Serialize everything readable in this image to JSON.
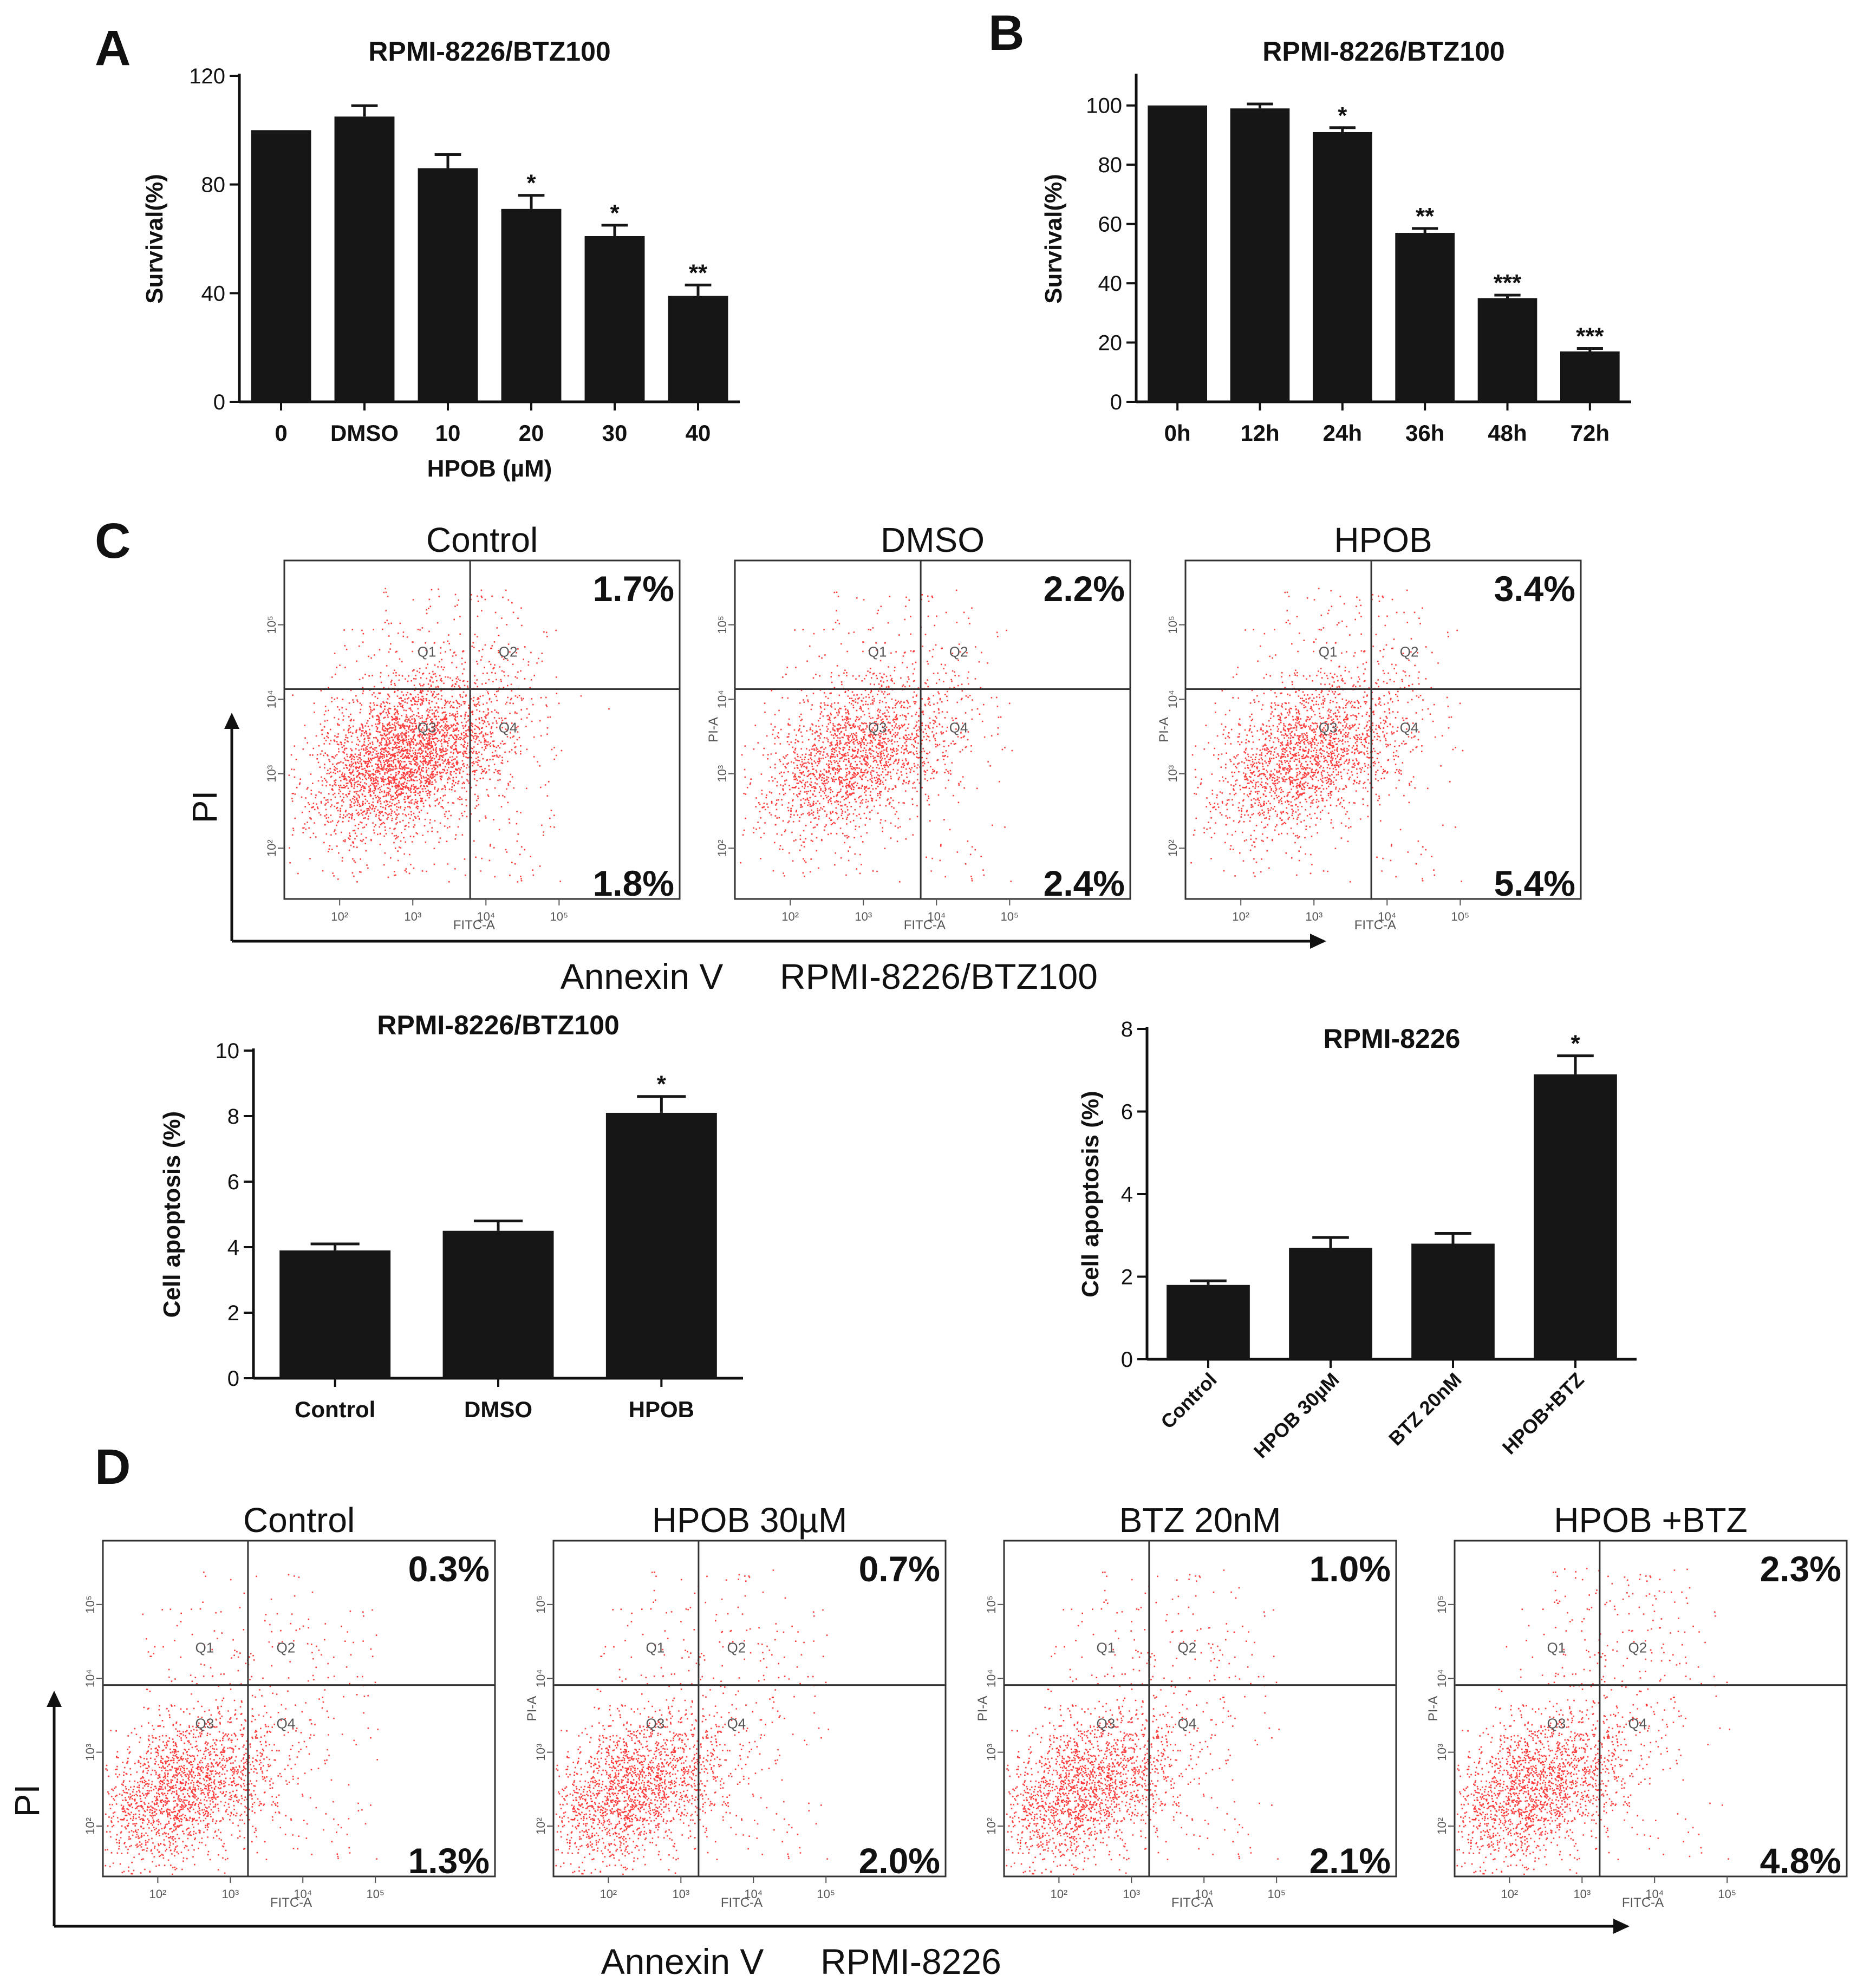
{
  "panel_labels": {
    "A": "A",
    "B": "B",
    "C": "C",
    "D": "D"
  },
  "colors": {
    "bar": "#161616",
    "dot": "#ff1a1a",
    "axis": "#111111"
  },
  "chart_data": [
    {
      "id": "A",
      "type": "bar",
      "title": "RPMI-8226/BTZ100",
      "xlabel": "HPOB (µM)",
      "ylabel": "Survival(%)",
      "categories": [
        "0",
        "DMSO",
        "10",
        "20",
        "30",
        "40"
      ],
      "values": [
        100,
        105,
        86,
        71,
        61,
        39
      ],
      "errors": [
        0,
        4,
        5,
        5,
        4,
        4
      ],
      "significance": [
        "",
        "",
        "",
        "*",
        "*",
        "**"
      ],
      "ylim": [
        0,
        120
      ],
      "yticks": [
        "0",
        "40",
        "80",
        "120"
      ],
      "grid": false
    },
    {
      "id": "B",
      "type": "bar",
      "title": "RPMI-8226/BTZ100",
      "xlabel": "",
      "ylabel": "Survival(%)",
      "categories": [
        "0h",
        "12h",
        "24h",
        "36h",
        "48h",
        "72h"
      ],
      "values": [
        100,
        99,
        91,
        57,
        35,
        17
      ],
      "errors": [
        0,
        1.5,
        1.5,
        1.5,
        1,
        1
      ],
      "significance": [
        "",
        "",
        "*",
        "**",
        "***",
        "***"
      ],
      "ylim": [
        0,
        110
      ],
      "yticks": [
        "0",
        "20",
        "40",
        "60",
        "80",
        "100"
      ],
      "grid": false
    },
    {
      "id": "C-flow",
      "type": "scatter",
      "title": "",
      "xlabel": "Annexin V",
      "ylabel": "PI",
      "caption": "RPMI-8226/BTZ100",
      "plots": [
        {
          "name": "Control",
          "upper_right_pct": "1.7%",
          "lower_right_pct": "1.8%"
        },
        {
          "name": "DMSO",
          "upper_right_pct": "2.2%",
          "lower_right_pct": "2.4%"
        },
        {
          "name": "HPOB",
          "upper_right_pct": "3.4%",
          "lower_right_pct": "5.4%"
        }
      ],
      "quadrant_labels": [
        "Q1",
        "Q2",
        "Q3",
        "Q4"
      ],
      "axis_x_label": "FITC-A",
      "axis_y_label": "PI-A",
      "x_ticks": [
        "10²",
        "10³",
        "10⁴",
        "10⁵"
      ],
      "y_ticks": [
        "10²",
        "10³",
        "10⁴",
        "10⁵"
      ]
    },
    {
      "id": "C-bar-BTZ100",
      "type": "bar",
      "title": "RPMI-8226/BTZ100",
      "xlabel": "",
      "ylabel": "Cell apoptosis (%)",
      "categories": [
        "Control",
        "DMSO",
        "HPOB"
      ],
      "values": [
        3.9,
        4.5,
        8.1
      ],
      "errors": [
        0.2,
        0.3,
        0.5
      ],
      "significance": [
        "",
        "",
        "*"
      ],
      "ylim": [
        0,
        10
      ],
      "yticks": [
        "0",
        "2",
        "4",
        "6",
        "8",
        "10"
      ],
      "grid": false
    },
    {
      "id": "C-bar-8226",
      "type": "bar",
      "title": "RPMI-8226",
      "xlabel": "",
      "ylabel": "Cell apoptosis (%)",
      "categories": [
        "Control",
        "HPOB 30µM",
        "BTZ 20nM",
        "HPOB+BTZ"
      ],
      "values": [
        1.8,
        2.7,
        2.8,
        6.9
      ],
      "errors": [
        0.1,
        0.25,
        0.25,
        0.45
      ],
      "significance": [
        "",
        "",
        "",
        "*"
      ],
      "ylim": [
        0,
        8
      ],
      "yticks": [
        "0",
        "2",
        "4",
        "6",
        "8"
      ],
      "grid": false
    },
    {
      "id": "D-flow",
      "type": "scatter",
      "title": "",
      "xlabel": "Annexin V",
      "ylabel": "PI",
      "caption": "RPMI-8226",
      "plots": [
        {
          "name": "Control",
          "upper_right_pct": "0.3%",
          "lower_right_pct": "1.3%"
        },
        {
          "name": "HPOB 30µM",
          "upper_right_pct": "0.7%",
          "lower_right_pct": "2.0%"
        },
        {
          "name": "BTZ 20nM",
          "upper_right_pct": "1.0%",
          "lower_right_pct": "2.1%"
        },
        {
          "name": "HPOB +BTZ",
          "upper_right_pct": "2.3%",
          "lower_right_pct": "4.8%"
        }
      ],
      "quadrant_labels": [
        "Q1",
        "Q2",
        "Q3",
        "Q4"
      ],
      "axis_x_label": "FITC-A",
      "axis_y_label": "PI-A",
      "x_ticks": [
        "10²",
        "10³",
        "10⁴",
        "10⁵"
      ],
      "y_ticks": [
        "10²",
        "10³",
        "10⁴",
        "10⁵"
      ]
    }
  ]
}
